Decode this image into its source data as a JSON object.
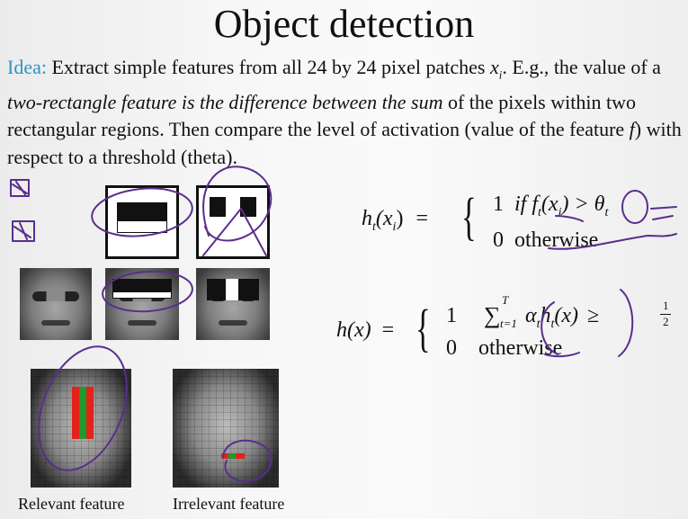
{
  "title": "Object detection",
  "paragraph": {
    "lead": "Idea:",
    "part1": " Extract simple features from all 24 by 24 pixel patches ",
    "var_x": "x",
    "sub_i": "i",
    "part2": ". E.g., the value of a ",
    "italic1": "two-rectangle feature is the difference between the sum",
    "part3": " of the pixels within two rectangular regions. Then compare the level of activation (value of the feature ",
    "var_f": "f",
    "part4": ") with respect to a threshold (theta)."
  },
  "eq1": {
    "lhs_h": "h",
    "lhs_sub": "t",
    "lhs_paren": "(x",
    "lhs_sub2": "i",
    "lhs_close": ")",
    "eq": "=",
    "case1_val": "1",
    "case1_text": "if f",
    "case1_sub": "t",
    "case1_arg": "(x",
    "case1_arg_sub": "i",
    "case1_cmp": ") > θ",
    "case1_theta_sub": "t",
    "case2_val": "0",
    "case2_text": "otherwise"
  },
  "eq2": {
    "lhs": "h(x)",
    "eq": "=",
    "case1_val": "1",
    "sum_sym": "∑",
    "sum_top": "T",
    "sum_bottom": "t=1",
    "sum_term": "α",
    "alpha_sub": "t",
    "h_term": "h",
    "h_sub": "t",
    "h_arg": "(x)",
    "geq": "≥",
    "frac_num": "1",
    "frac_den": "2",
    "case2_val": "0",
    "case2_text": "otherwise"
  },
  "captions": {
    "relevant": "Relevant feature",
    "irrelevant": "Irrelevant feature"
  },
  "colors": {
    "lead": "#2e93c8",
    "annotation": "#5b2d8e",
    "feature_red": "#e2231a",
    "feature_green": "#1f9a2e"
  }
}
